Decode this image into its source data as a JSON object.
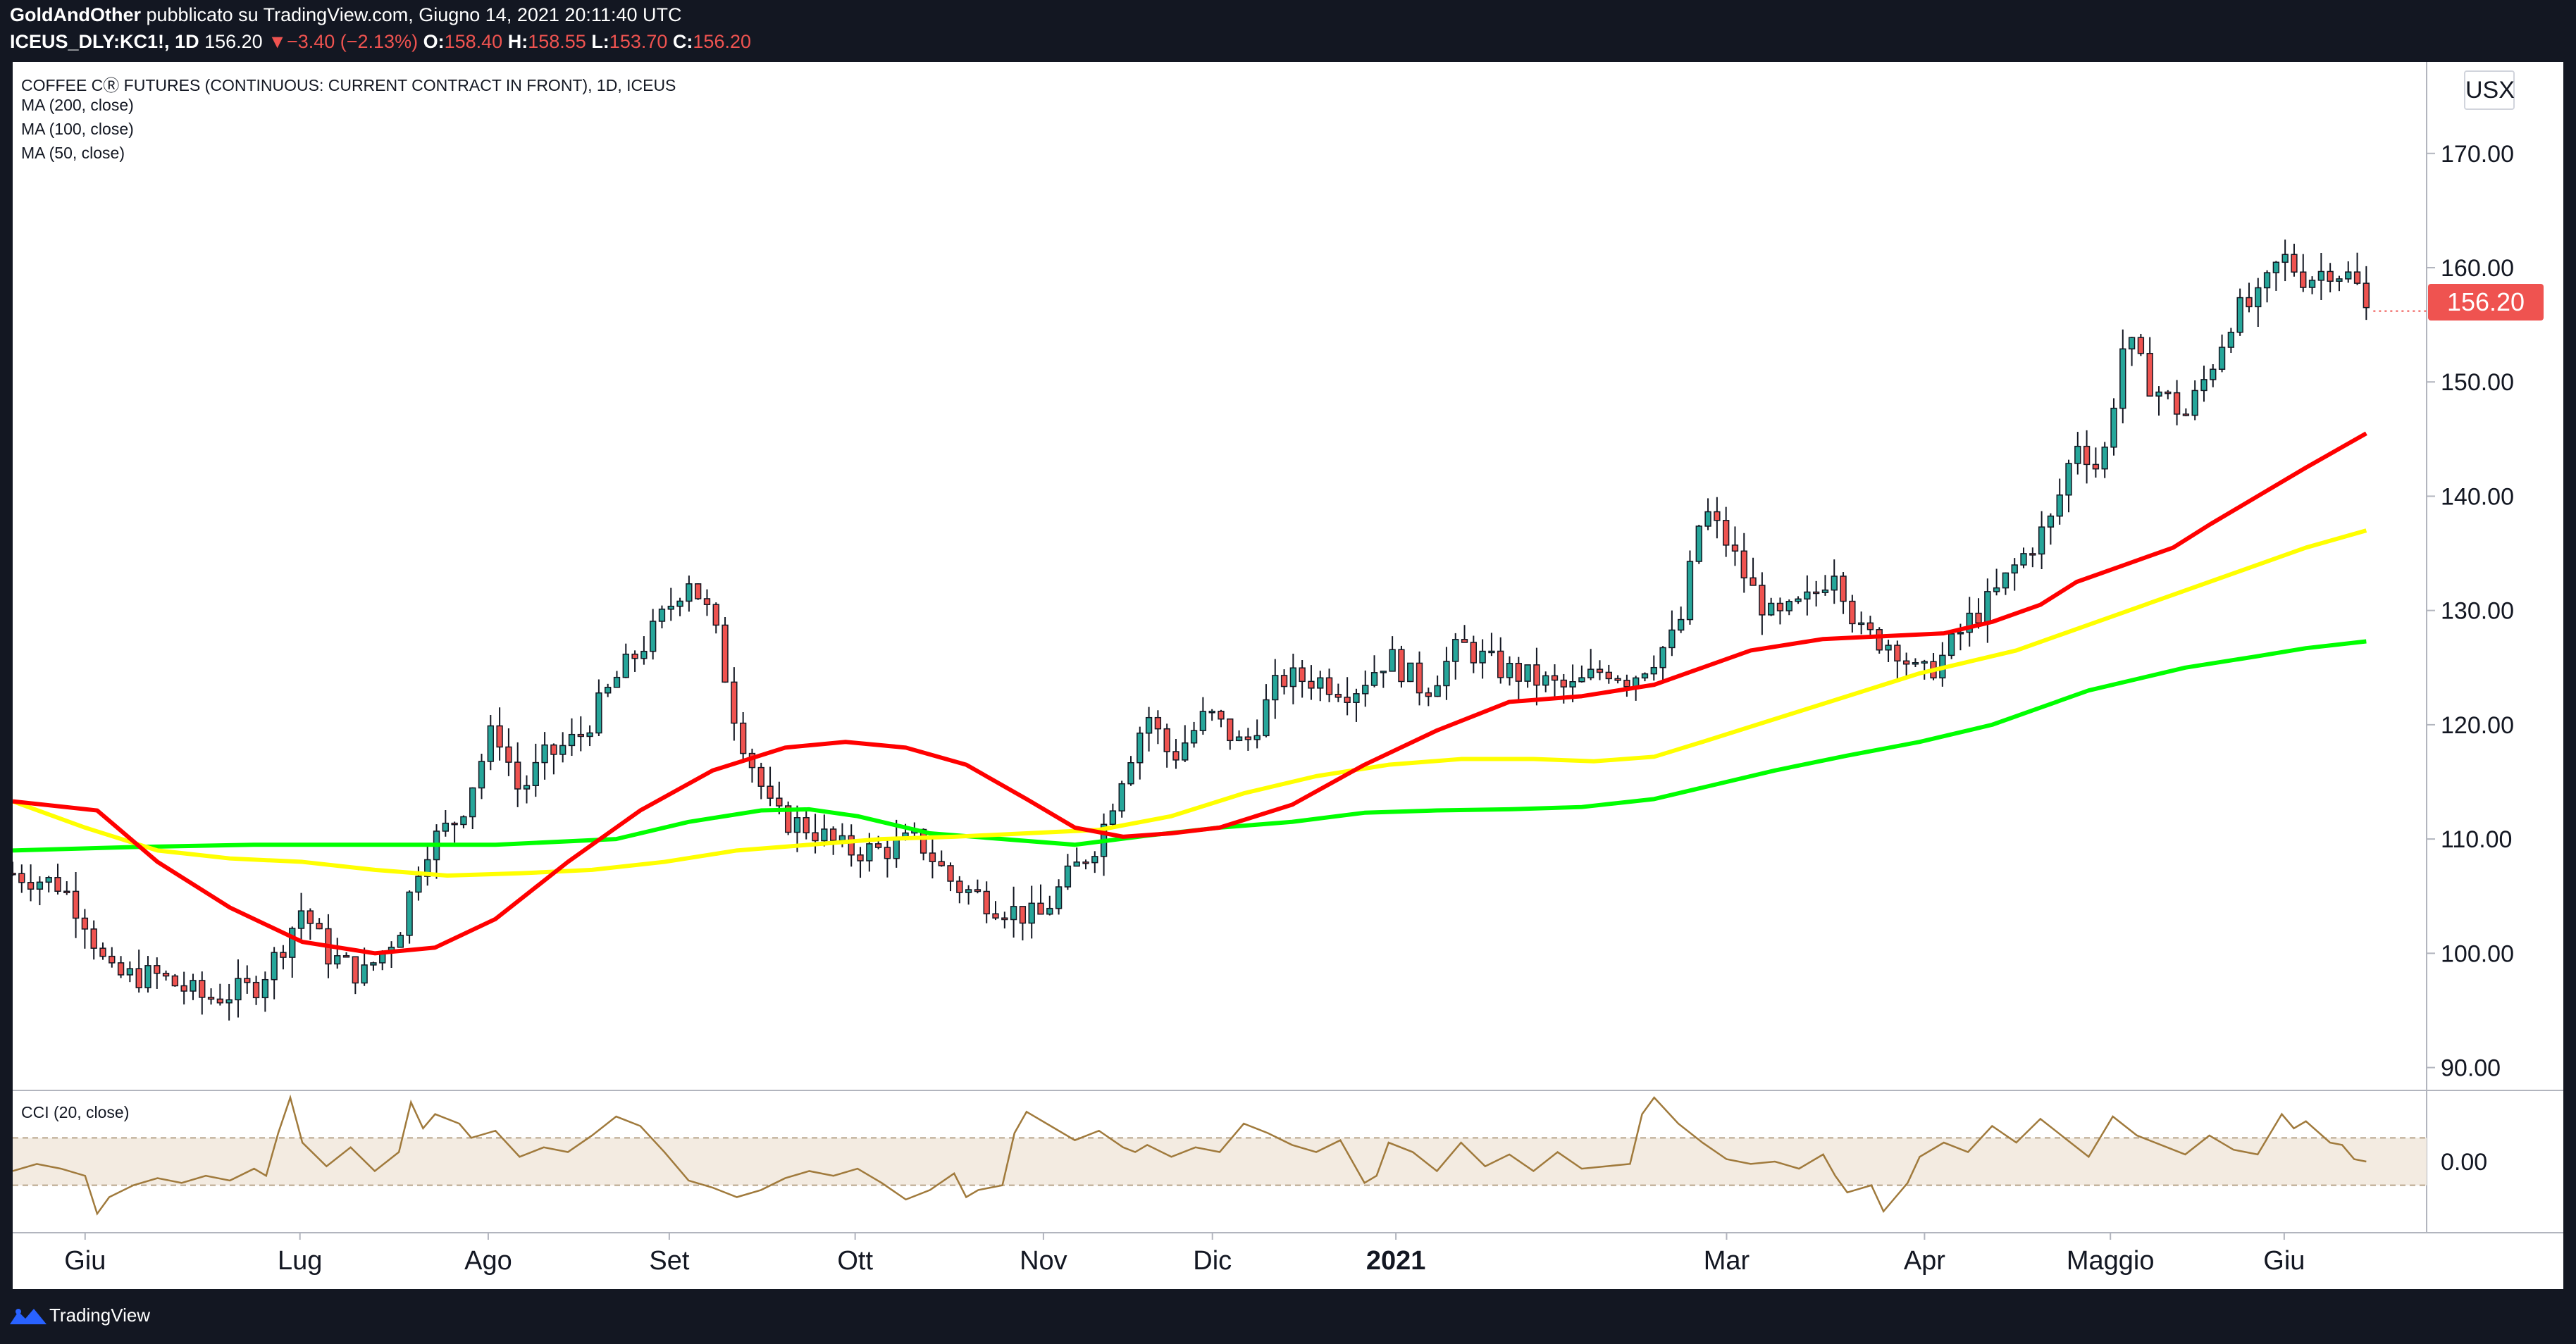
{
  "header": {
    "author": "GoldAndOther",
    "published": "pubblicato su TradingView.com, Giugno 14, 2021 20:11:40 UTC",
    "symbol": "ICEUS_DLY:KC1!, 1D",
    "last": "156.20",
    "change": "−3.40 (−2.13%)",
    "o_label": "O:",
    "o": "158.40",
    "h_label": "H:",
    "h": "158.55",
    "l_label": "L:",
    "l": "153.70",
    "c_label": "C:",
    "c": "156.20"
  },
  "legend": {
    "title": "COFFEE CⓇ FUTURES (CONTINUOUS: CURRENT CONTRACT IN FRONT), 1D, ICEUS",
    "ma200": "MA (200, close)",
    "ma100": "MA (100, close)",
    "ma50": "MA (50, close)",
    "cci": "CCI (20, close)"
  },
  "currency_button": "USX",
  "last_price_tag": "156.20",
  "footer": {
    "brand": "TradingView"
  },
  "colors": {
    "background": "#131722",
    "up": "#26a69a",
    "down": "#ef5350",
    "ma50": "#ff0000",
    "ma100": "#ffff00",
    "ma200": "#00ff00",
    "cci": "#a07a3c",
    "cci_band": "#f3ebe1"
  },
  "chart_data": [
    {
      "type": "candlestick",
      "title": "COFFEE C FUTURES (CONTINUOUS: CURRENT CONTRACT IN FRONT), 1D, ICEUS",
      "y_ticks": [
        "170.00",
        "160.00",
        "150.00",
        "140.00",
        "130.00",
        "120.00",
        "110.00",
        "100.00",
        "90.00"
      ],
      "ylim": [
        88,
        178
      ],
      "x_ticks": [
        "Giu",
        "Lug",
        "Ago",
        "Set",
        "Ott",
        "Nov",
        "Dic",
        "2021",
        "Mar",
        "Apr",
        "Maggio",
        "Giu"
      ],
      "x_tick_pos": [
        0.03,
        0.119,
        0.197,
        0.272,
        0.349,
        0.427,
        0.497,
        0.573,
        0.71,
        0.792,
        0.869,
        0.941
      ],
      "close_path": [
        [
          0,
          107
        ],
        [
          0.02,
          106
        ],
        [
          0.03,
          103
        ],
        [
          0.04,
          98
        ],
        [
          0.06,
          98
        ],
        [
          0.08,
          96
        ],
        [
          0.1,
          97
        ],
        [
          0.11,
          100
        ],
        [
          0.12,
          104
        ],
        [
          0.13,
          100
        ],
        [
          0.145,
          98
        ],
        [
          0.16,
          102
        ],
        [
          0.17,
          109
        ],
        [
          0.185,
          112
        ],
        [
          0.2,
          120
        ],
        [
          0.21,
          114
        ],
        [
          0.22,
          117
        ],
        [
          0.235,
          119
        ],
        [
          0.25,
          124
        ],
        [
          0.265,
          128
        ],
        [
          0.28,
          133
        ],
        [
          0.29,
          129
        ],
        [
          0.3,
          120
        ],
        [
          0.315,
          112
        ],
        [
          0.33,
          111
        ],
        [
          0.345,
          109
        ],
        [
          0.36,
          109
        ],
        [
          0.375,
          110
        ],
        [
          0.39,
          106
        ],
        [
          0.41,
          104
        ],
        [
          0.425,
          103
        ],
        [
          0.435,
          106
        ],
        [
          0.45,
          110
        ],
        [
          0.46,
          116
        ],
        [
          0.47,
          121
        ],
        [
          0.48,
          117
        ],
        [
          0.495,
          121
        ],
        [
          0.51,
          118
        ],
        [
          0.525,
          124
        ],
        [
          0.54,
          124
        ],
        [
          0.555,
          123
        ],
        [
          0.57,
          126
        ],
        [
          0.585,
          123
        ],
        [
          0.6,
          127
        ],
        [
          0.615,
          125
        ],
        [
          0.63,
          124
        ],
        [
          0.645,
          123
        ],
        [
          0.66,
          125
        ],
        [
          0.67,
          124
        ],
        [
          0.68,
          126
        ],
        [
          0.69,
          128
        ],
        [
          0.7,
          139
        ],
        [
          0.71,
          136
        ],
        [
          0.72,
          132
        ],
        [
          0.73,
          129
        ],
        [
          0.745,
          131
        ],
        [
          0.755,
          134
        ],
        [
          0.765,
          128
        ],
        [
          0.78,
          127
        ],
        [
          0.79,
          124
        ],
        [
          0.8,
          126
        ],
        [
          0.81,
          129
        ],
        [
          0.82,
          131
        ],
        [
          0.83,
          134
        ],
        [
          0.845,
          138
        ],
        [
          0.855,
          145
        ],
        [
          0.865,
          142
        ],
        [
          0.875,
          154
        ],
        [
          0.885,
          150
        ],
        [
          0.9,
          147
        ],
        [
          0.91,
          151
        ],
        [
          0.92,
          156
        ],
        [
          0.93,
          157
        ],
        [
          0.94,
          161
        ],
        [
          0.95,
          159
        ],
        [
          0.96,
          160
        ],
        [
          0.97,
          159
        ],
        [
          0.975,
          156.2
        ]
      ],
      "ma50": [
        [
          0,
          113.3
        ],
        [
          0.035,
          112.5
        ],
        [
          0.06,
          108
        ],
        [
          0.09,
          104
        ],
        [
          0.12,
          101
        ],
        [
          0.15,
          100
        ],
        [
          0.175,
          100.5
        ],
        [
          0.2,
          103
        ],
        [
          0.23,
          108
        ],
        [
          0.26,
          112.5
        ],
        [
          0.29,
          116
        ],
        [
          0.32,
          118
        ],
        [
          0.345,
          118.5
        ],
        [
          0.37,
          118
        ],
        [
          0.395,
          116.5
        ],
        [
          0.42,
          113.5
        ],
        [
          0.44,
          111
        ],
        [
          0.46,
          110.2
        ],
        [
          0.48,
          110.5
        ],
        [
          0.5,
          111
        ],
        [
          0.53,
          113
        ],
        [
          0.56,
          116.5
        ],
        [
          0.59,
          119.5
        ],
        [
          0.62,
          122
        ],
        [
          0.65,
          122.5
        ],
        [
          0.68,
          123.5
        ],
        [
          0.7,
          125
        ],
        [
          0.72,
          126.5
        ],
        [
          0.75,
          127.5
        ],
        [
          0.78,
          127.8
        ],
        [
          0.8,
          128
        ],
        [
          0.82,
          129
        ],
        [
          0.84,
          130.5
        ],
        [
          0.855,
          132.5
        ],
        [
          0.875,
          134
        ],
        [
          0.895,
          135.5
        ],
        [
          0.91,
          137.5
        ],
        [
          0.93,
          140
        ],
        [
          0.95,
          142.5
        ],
        [
          0.975,
          145.5
        ]
      ],
      "ma100": [
        [
          0,
          113.3
        ],
        [
          0.03,
          111
        ],
        [
          0.06,
          109
        ],
        [
          0.09,
          108.3
        ],
        [
          0.12,
          108
        ],
        [
          0.15,
          107.3
        ],
        [
          0.18,
          106.8
        ],
        [
          0.21,
          107
        ],
        [
          0.24,
          107.3
        ],
        [
          0.27,
          108
        ],
        [
          0.3,
          109
        ],
        [
          0.33,
          109.5
        ],
        [
          0.36,
          110
        ],
        [
          0.39,
          110.2
        ],
        [
          0.42,
          110.5
        ],
        [
          0.45,
          110.8
        ],
        [
          0.48,
          112
        ],
        [
          0.51,
          114
        ],
        [
          0.54,
          115.5
        ],
        [
          0.57,
          116.5
        ],
        [
          0.6,
          117
        ],
        [
          0.63,
          117
        ],
        [
          0.655,
          116.8
        ],
        [
          0.68,
          117.2
        ],
        [
          0.7,
          118.5
        ],
        [
          0.73,
          120.5
        ],
        [
          0.76,
          122.5
        ],
        [
          0.79,
          124.5
        ],
        [
          0.81,
          125.5
        ],
        [
          0.83,
          126.5
        ],
        [
          0.85,
          128
        ],
        [
          0.87,
          129.5
        ],
        [
          0.89,
          131
        ],
        [
          0.91,
          132.5
        ],
        [
          0.93,
          134
        ],
        [
          0.95,
          135.5
        ],
        [
          0.975,
          137
        ]
      ],
      "ma200": [
        [
          0,
          109
        ],
        [
          0.05,
          109.3
        ],
        [
          0.1,
          109.5
        ],
        [
          0.15,
          109.5
        ],
        [
          0.2,
          109.5
        ],
        [
          0.25,
          110
        ],
        [
          0.28,
          111.5
        ],
        [
          0.31,
          112.5
        ],
        [
          0.33,
          112.6
        ],
        [
          0.35,
          112
        ],
        [
          0.38,
          110.5
        ],
        [
          0.41,
          110
        ],
        [
          0.44,
          109.5
        ],
        [
          0.47,
          110.3
        ],
        [
          0.5,
          111
        ],
        [
          0.53,
          111.5
        ],
        [
          0.56,
          112.3
        ],
        [
          0.59,
          112.5
        ],
        [
          0.62,
          112.6
        ],
        [
          0.65,
          112.8
        ],
        [
          0.68,
          113.5
        ],
        [
          0.7,
          114.5
        ],
        [
          0.73,
          116
        ],
        [
          0.76,
          117.3
        ],
        [
          0.79,
          118.5
        ],
        [
          0.82,
          120
        ],
        [
          0.84,
          121.5
        ],
        [
          0.86,
          123
        ],
        [
          0.88,
          124
        ],
        [
          0.9,
          125
        ],
        [
          0.93,
          126
        ],
        [
          0.95,
          126.7
        ],
        [
          0.975,
          127.3
        ]
      ],
      "last_price": 156.2
    },
    {
      "type": "line",
      "title": "CCI (20, close)",
      "y_ticks": [
        "0.00"
      ],
      "band": [
        -100,
        100
      ],
      "ylim": [
        -300,
        300
      ],
      "values": [
        [
          0,
          -40
        ],
        [
          0.01,
          -10
        ],
        [
          0.02,
          -30
        ],
        [
          0.03,
          -60
        ],
        [
          0.035,
          -220
        ],
        [
          0.04,
          -150
        ],
        [
          0.05,
          -100
        ],
        [
          0.06,
          -70
        ],
        [
          0.07,
          -90
        ],
        [
          0.08,
          -60
        ],
        [
          0.09,
          -80
        ],
        [
          0.1,
          -30
        ],
        [
          0.105,
          -60
        ],
        [
          0.11,
          120
        ],
        [
          0.115,
          270
        ],
        [
          0.12,
          80
        ],
        [
          0.13,
          -20
        ],
        [
          0.14,
          60
        ],
        [
          0.15,
          -40
        ],
        [
          0.16,
          40
        ],
        [
          0.165,
          250
        ],
        [
          0.17,
          140
        ],
        [
          0.175,
          200
        ],
        [
          0.185,
          160
        ],
        [
          0.19,
          100
        ],
        [
          0.2,
          130
        ],
        [
          0.21,
          20
        ],
        [
          0.22,
          60
        ],
        [
          0.23,
          40
        ],
        [
          0.24,
          110
        ],
        [
          0.25,
          190
        ],
        [
          0.26,
          150
        ],
        [
          0.27,
          40
        ],
        [
          0.28,
          -80
        ],
        [
          0.29,
          -110
        ],
        [
          0.3,
          -150
        ],
        [
          0.31,
          -120
        ],
        [
          0.32,
          -70
        ],
        [
          0.33,
          -40
        ],
        [
          0.34,
          -60
        ],
        [
          0.35,
          -30
        ],
        [
          0.36,
          -90
        ],
        [
          0.37,
          -160
        ],
        [
          0.38,
          -120
        ],
        [
          0.39,
          -50
        ],
        [
          0.395,
          -150
        ],
        [
          0.4,
          -120
        ],
        [
          0.41,
          -100
        ],
        [
          0.415,
          120
        ],
        [
          0.42,
          210
        ],
        [
          0.43,
          150
        ],
        [
          0.44,
          90
        ],
        [
          0.45,
          130
        ],
        [
          0.46,
          60
        ],
        [
          0.465,
          40
        ],
        [
          0.47,
          70
        ],
        [
          0.48,
          20
        ],
        [
          0.49,
          60
        ],
        [
          0.5,
          40
        ],
        [
          0.51,
          160
        ],
        [
          0.52,
          120
        ],
        [
          0.53,
          70
        ],
        [
          0.54,
          40
        ],
        [
          0.55,
          90
        ],
        [
          0.56,
          -90
        ],
        [
          0.565,
          -60
        ],
        [
          0.57,
          80
        ],
        [
          0.58,
          40
        ],
        [
          0.59,
          -40
        ],
        [
          0.6,
          80
        ],
        [
          0.61,
          -20
        ],
        [
          0.62,
          30
        ],
        [
          0.63,
          -40
        ],
        [
          0.64,
          40
        ],
        [
          0.65,
          -30
        ],
        [
          0.66,
          -20
        ],
        [
          0.67,
          -10
        ],
        [
          0.675,
          200
        ],
        [
          0.68,
          270
        ],
        [
          0.69,
          160
        ],
        [
          0.7,
          80
        ],
        [
          0.71,
          10
        ],
        [
          0.72,
          -10
        ],
        [
          0.73,
          0
        ],
        [
          0.74,
          -30
        ],
        [
          0.75,
          30
        ],
        [
          0.755,
          -60
        ],
        [
          0.76,
          -130
        ],
        [
          0.77,
          -100
        ],
        [
          0.775,
          -210
        ],
        [
          0.78,
          -150
        ],
        [
          0.785,
          -90
        ],
        [
          0.79,
          20
        ],
        [
          0.8,
          80
        ],
        [
          0.81,
          40
        ],
        [
          0.82,
          150
        ],
        [
          0.83,
          80
        ],
        [
          0.84,
          180
        ],
        [
          0.85,
          100
        ],
        [
          0.86,
          20
        ],
        [
          0.87,
          190
        ],
        [
          0.88,
          110
        ],
        [
          0.89,
          70
        ],
        [
          0.9,
          30
        ],
        [
          0.91,
          110
        ],
        [
          0.92,
          50
        ],
        [
          0.93,
          30
        ],
        [
          0.94,
          200
        ],
        [
          0.945,
          140
        ],
        [
          0.95,
          170
        ],
        [
          0.96,
          80
        ],
        [
          0.965,
          70
        ],
        [
          0.97,
          10
        ],
        [
          0.975,
          0
        ]
      ]
    }
  ]
}
